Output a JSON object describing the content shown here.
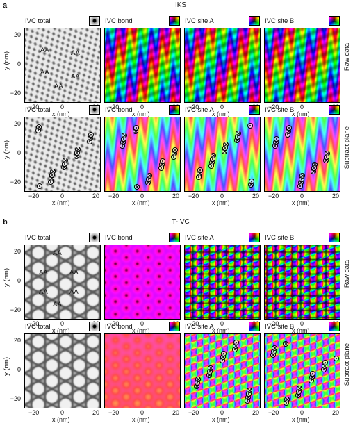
{
  "sections": [
    {
      "letter": "a",
      "title": "IKS",
      "rows": [
        {
          "row_label": "Raw data",
          "panels": [
            {
              "title": "IVC total",
              "legend": "gray",
              "kind": "iks-total"
            },
            {
              "title": "IVC bond",
              "legend": "color",
              "kind": "iks-bond-raw"
            },
            {
              "title": "IVC site A",
              "legend": "color",
              "kind": "iks-siteA-raw"
            },
            {
              "title": "IVC site B",
              "legend": "color",
              "kind": "iks-siteB-raw"
            }
          ]
        },
        {
          "row_label": "Subtract plane",
          "panels": [
            {
              "title": "IVC total",
              "legend": "gray",
              "kind": "iks-total-vort"
            },
            {
              "title": "IVC bond",
              "legend": "color",
              "kind": "iks-bond-sub"
            },
            {
              "title": "IVC site A",
              "legend": "color",
              "kind": "iks-siteA-sub"
            },
            {
              "title": "IVC site B",
              "legend": "color",
              "kind": "iks-siteB-sub"
            }
          ]
        }
      ]
    },
    {
      "letter": "b",
      "title": "T-IVC",
      "rows": [
        {
          "row_label": "Raw data",
          "panels": [
            {
              "title": "IVC total",
              "legend": "gray",
              "kind": "tivc-total"
            },
            {
              "title": "IVC bond",
              "legend": "color",
              "kind": "tivc-bond-raw"
            },
            {
              "title": "IVC site A",
              "legend": "color",
              "kind": "tivc-siteA-raw"
            },
            {
              "title": "IVC site B",
              "legend": "color",
              "kind": "tivc-siteB-raw"
            }
          ]
        },
        {
          "row_label": "Subtract plane",
          "panels": [
            {
              "title": "IVC total",
              "legend": "gray",
              "kind": "tivc-total"
            },
            {
              "title": "IVC bond",
              "legend": "color",
              "kind": "tivc-bond-sub"
            },
            {
              "title": "IVC site A",
              "legend": "color",
              "kind": "tivc-siteA-sub"
            },
            {
              "title": "IVC site B",
              "legend": "color",
              "kind": "tivc-siteB-sub"
            }
          ]
        }
      ]
    }
  ],
  "aa_label": "AA",
  "x_axis": {
    "label": "x (nm)",
    "ticks": [
      "−20",
      "0",
      "20"
    ]
  },
  "y_axis": {
    "label": "y (nm)",
    "ticks": [
      "20",
      "0",
      "−20"
    ]
  }
}
